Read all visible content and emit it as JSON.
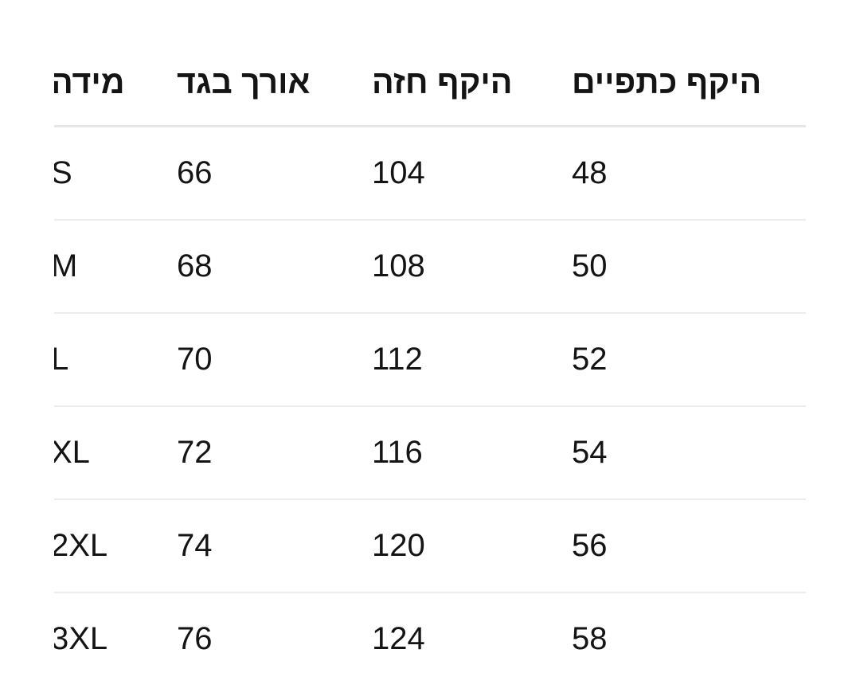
{
  "table": {
    "headers": [
      "מידה",
      "אורך בגד",
      "היקף חזה",
      "היקף כתפיים"
    ],
    "rows": [
      [
        "S",
        "66",
        "104",
        "48"
      ],
      [
        "M",
        "68",
        "108",
        "50"
      ],
      [
        "L",
        "70",
        "112",
        "52"
      ],
      [
        "XL",
        "72",
        "116",
        "54"
      ],
      [
        "2XL",
        "74",
        "120",
        "56"
      ],
      [
        "3XL",
        "76",
        "124",
        "58"
      ]
    ]
  }
}
